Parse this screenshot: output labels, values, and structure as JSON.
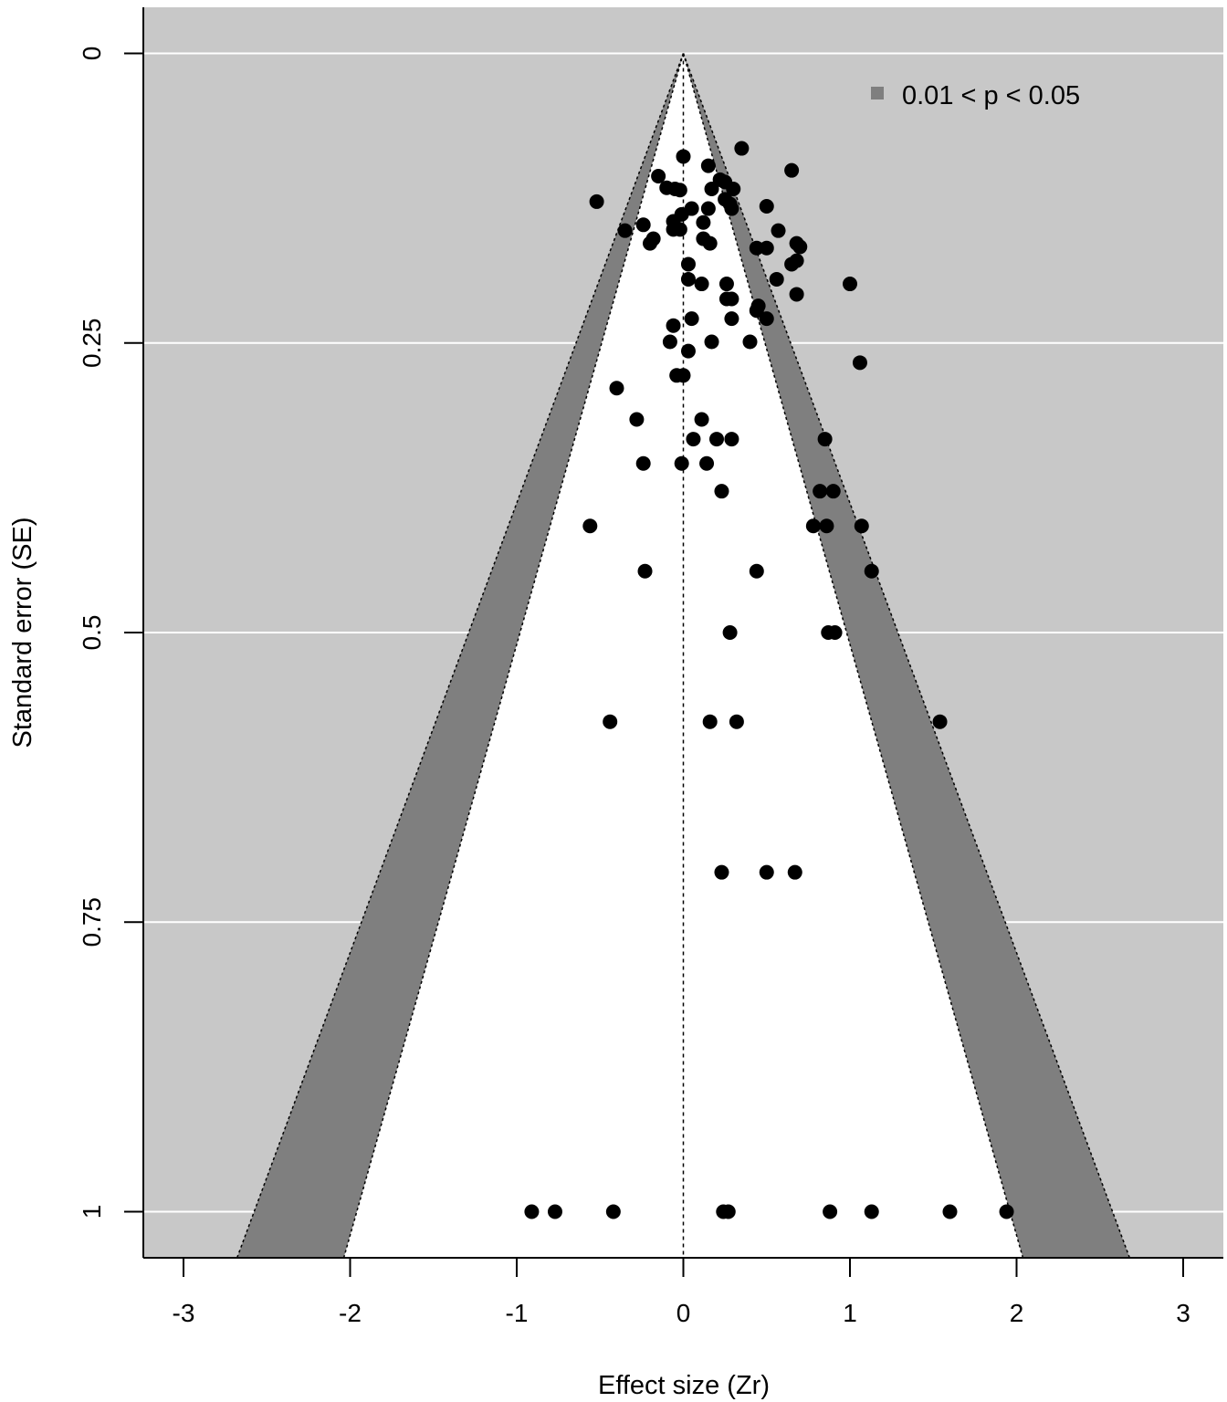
{
  "chart_data": {
    "type": "scatter",
    "title": "",
    "xlabel": "Effect size (Zr)",
    "ylabel": "Standard error (SE)",
    "xlim": [
      -3.25,
      3.25
    ],
    "ylim": [
      1.04,
      -0.04
    ],
    "y_reversed": true,
    "grid": "horizontal white lines",
    "x_ticks": [
      -3,
      -2,
      -1,
      0,
      1,
      2,
      3
    ],
    "x_tick_labels": [
      "-3",
      "-2",
      "-1",
      "0",
      "1",
      "2",
      "3"
    ],
    "y_ticks": [
      0,
      0.25,
      0.5,
      0.75,
      1
    ],
    "y_tick_labels": [
      "0",
      "0.25",
      "0.5",
      "0.75",
      "1"
    ],
    "legend": {
      "position": "top-right",
      "label": "0.01 < p < 0.05",
      "color": "#7f7f7f"
    },
    "contours": {
      "inner_z": 1.96,
      "outer_z": 2.576
    },
    "colors": {
      "background": "#c8c8c8",
      "region": "#7f7f7f",
      "funnel": "#ffffff",
      "points": "#000000",
      "grid": "#ffffff"
    },
    "points": [
      {
        "x": 0.35,
        "y": 0.082
      },
      {
        "x": 0.0,
        "y": 0.089
      },
      {
        "x": 0.15,
        "y": 0.097
      },
      {
        "x": 0.65,
        "y": 0.101
      },
      {
        "x": -0.15,
        "y": 0.106
      },
      {
        "x": 0.22,
        "y": 0.109
      },
      {
        "x": 0.25,
        "y": 0.111
      },
      {
        "x": -0.1,
        "y": 0.116
      },
      {
        "x": -0.05,
        "y": 0.117
      },
      {
        "x": -0.02,
        "y": 0.118
      },
      {
        "x": 0.17,
        "y": 0.117
      },
      {
        "x": 0.3,
        "y": 0.117
      },
      {
        "x": 0.25,
        "y": 0.126
      },
      {
        "x": -0.52,
        "y": 0.128
      },
      {
        "x": 0.28,
        "y": 0.13
      },
      {
        "x": 0.5,
        "y": 0.132
      },
      {
        "x": 0.05,
        "y": 0.134
      },
      {
        "x": 0.15,
        "y": 0.134
      },
      {
        "x": -0.01,
        "y": 0.139
      },
      {
        "x": 0.29,
        "y": 0.134
      },
      {
        "x": -0.06,
        "y": 0.145
      },
      {
        "x": 0.12,
        "y": 0.146
      },
      {
        "x": -0.24,
        "y": 0.148
      },
      {
        "x": -0.35,
        "y": 0.153
      },
      {
        "x": -0.06,
        "y": 0.152
      },
      {
        "x": -0.02,
        "y": 0.152
      },
      {
        "x": 0.57,
        "y": 0.153
      },
      {
        "x": -0.18,
        "y": 0.16
      },
      {
        "x": 0.12,
        "y": 0.16
      },
      {
        "x": -0.2,
        "y": 0.164
      },
      {
        "x": 0.16,
        "y": 0.164
      },
      {
        "x": 0.68,
        "y": 0.164
      },
      {
        "x": 0.44,
        "y": 0.168
      },
      {
        "x": 0.5,
        "y": 0.168
      },
      {
        "x": 0.7,
        "y": 0.167
      },
      {
        "x": 0.68,
        "y": 0.179
      },
      {
        "x": 0.65,
        "y": 0.182
      },
      {
        "x": 0.03,
        "y": 0.182
      },
      {
        "x": 0.56,
        "y": 0.195
      },
      {
        "x": 0.03,
        "y": 0.195
      },
      {
        "x": 0.11,
        "y": 0.199
      },
      {
        "x": 0.26,
        "y": 0.199
      },
      {
        "x": 1.0,
        "y": 0.199
      },
      {
        "x": 0.68,
        "y": 0.208
      },
      {
        "x": 0.26,
        "y": 0.212
      },
      {
        "x": 0.29,
        "y": 0.212
      },
      {
        "x": 0.45,
        "y": 0.218
      },
      {
        "x": 0.44,
        "y": 0.222
      },
      {
        "x": 0.05,
        "y": 0.229
      },
      {
        "x": 0.29,
        "y": 0.229
      },
      {
        "x": 0.5,
        "y": 0.229
      },
      {
        "x": -0.06,
        "y": 0.235
      },
      {
        "x": -0.08,
        "y": 0.249
      },
      {
        "x": 0.17,
        "y": 0.249
      },
      {
        "x": 0.4,
        "y": 0.249
      },
      {
        "x": 0.03,
        "y": 0.257
      },
      {
        "x": 1.06,
        "y": 0.267
      },
      {
        "x": -0.04,
        "y": 0.278
      },
      {
        "x": 0.0,
        "y": 0.278
      },
      {
        "x": -0.4,
        "y": 0.289
      },
      {
        "x": -0.28,
        "y": 0.316
      },
      {
        "x": 0.11,
        "y": 0.316
      },
      {
        "x": 0.06,
        "y": 0.333
      },
      {
        "x": 0.2,
        "y": 0.333
      },
      {
        "x": 0.29,
        "y": 0.333
      },
      {
        "x": 0.85,
        "y": 0.333
      },
      {
        "x": -0.24,
        "y": 0.354
      },
      {
        "x": -0.01,
        "y": 0.354
      },
      {
        "x": 0.14,
        "y": 0.354
      },
      {
        "x": 0.23,
        "y": 0.378
      },
      {
        "x": 0.82,
        "y": 0.378
      },
      {
        "x": 0.9,
        "y": 0.378
      },
      {
        "x": -0.56,
        "y": 0.408
      },
      {
        "x": 0.78,
        "y": 0.408
      },
      {
        "x": 0.86,
        "y": 0.408
      },
      {
        "x": 1.07,
        "y": 0.408
      },
      {
        "x": -0.23,
        "y": 0.447
      },
      {
        "x": 0.44,
        "y": 0.447
      },
      {
        "x": 1.13,
        "y": 0.447
      },
      {
        "x": 0.28,
        "y": 0.5
      },
      {
        "x": 0.87,
        "y": 0.5
      },
      {
        "x": 0.91,
        "y": 0.5
      },
      {
        "x": -0.44,
        "y": 0.577
      },
      {
        "x": 0.16,
        "y": 0.577
      },
      {
        "x": 0.32,
        "y": 0.577
      },
      {
        "x": 1.54,
        "y": 0.577
      },
      {
        "x": 0.23,
        "y": 0.707
      },
      {
        "x": 0.5,
        "y": 0.707
      },
      {
        "x": 0.67,
        "y": 0.707
      },
      {
        "x": -0.91,
        "y": 1.0
      },
      {
        "x": -0.77,
        "y": 1.0
      },
      {
        "x": -0.42,
        "y": 1.0
      },
      {
        "x": 0.24,
        "y": 1.0
      },
      {
        "x": 0.27,
        "y": 1.0
      },
      {
        "x": 0.88,
        "y": 1.0
      },
      {
        "x": 1.13,
        "y": 1.0
      },
      {
        "x": 1.6,
        "y": 1.0
      },
      {
        "x": 1.94,
        "y": 1.0
      }
    ]
  }
}
